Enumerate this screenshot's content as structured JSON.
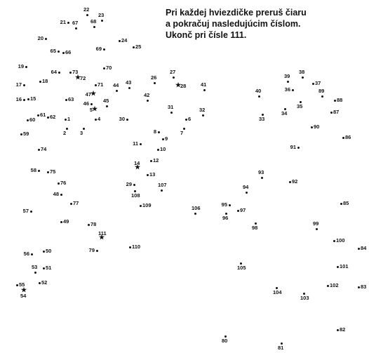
{
  "instructions": {
    "line1": "Pri každej hviezdičke preruš čiaru",
    "line2": "a pokračuj nasledujúcim číslom.",
    "line3": "Ukonč pri čísle 111."
  },
  "dots": [
    {
      "n": "1"
    },
    {
      "n": "2"
    },
    {
      "n": "3"
    },
    {
      "n": "4"
    },
    {
      "n": "5",
      "star": true
    },
    {
      "n": "6"
    },
    {
      "n": "7"
    },
    {
      "n": "8"
    },
    {
      "n": "9"
    },
    {
      "n": "10"
    },
    {
      "n": "11"
    },
    {
      "n": "12"
    },
    {
      "n": "13"
    },
    {
      "n": "14",
      "star": true
    },
    {
      "n": "15"
    },
    {
      "n": "16"
    },
    {
      "n": "17"
    },
    {
      "n": "18"
    },
    {
      "n": "19"
    },
    {
      "n": "20"
    },
    {
      "n": "21"
    },
    {
      "n": "22"
    },
    {
      "n": "23"
    },
    {
      "n": "24"
    },
    {
      "n": "25"
    },
    {
      "n": "26"
    },
    {
      "n": "27"
    },
    {
      "n": "28",
      "star": true
    },
    {
      "n": "29"
    },
    {
      "n": "30"
    },
    {
      "n": "31"
    },
    {
      "n": "32"
    },
    {
      "n": "33"
    },
    {
      "n": "34"
    },
    {
      "n": "35"
    },
    {
      "n": "36"
    },
    {
      "n": "37"
    },
    {
      "n": "38"
    },
    {
      "n": "39"
    },
    {
      "n": "40"
    },
    {
      "n": "41"
    },
    {
      "n": "42"
    },
    {
      "n": "43"
    },
    {
      "n": "44"
    },
    {
      "n": "45"
    },
    {
      "n": "46"
    },
    {
      "n": "47",
      "star": true
    },
    {
      "n": "48"
    },
    {
      "n": "49"
    },
    {
      "n": "50"
    },
    {
      "n": "51"
    },
    {
      "n": "52"
    },
    {
      "n": "53"
    },
    {
      "n": "54",
      "star": true
    },
    {
      "n": "55"
    },
    {
      "n": "56"
    },
    {
      "n": "57"
    },
    {
      "n": "58"
    },
    {
      "n": "59"
    },
    {
      "n": "60"
    },
    {
      "n": "61"
    },
    {
      "n": "62"
    },
    {
      "n": "63"
    },
    {
      "n": "64"
    },
    {
      "n": "65"
    },
    {
      "n": "66"
    },
    {
      "n": "67"
    },
    {
      "n": "68"
    },
    {
      "n": "69"
    },
    {
      "n": "70"
    },
    {
      "n": "71"
    },
    {
      "n": "72",
      "star": true
    },
    {
      "n": "73"
    },
    {
      "n": "74"
    },
    {
      "n": "75"
    },
    {
      "n": "76"
    },
    {
      "n": "77"
    },
    {
      "n": "78"
    },
    {
      "n": "79"
    },
    {
      "n": "80"
    },
    {
      "n": "81"
    },
    {
      "n": "82"
    },
    {
      "n": "83"
    },
    {
      "n": "84"
    },
    {
      "n": "85"
    },
    {
      "n": "86"
    },
    {
      "n": "87"
    },
    {
      "n": "88"
    },
    {
      "n": "89"
    },
    {
      "n": "90"
    },
    {
      "n": "91"
    },
    {
      "n": "92"
    },
    {
      "n": "93"
    },
    {
      "n": "94"
    },
    {
      "n": "95"
    },
    {
      "n": "96"
    },
    {
      "n": "97"
    },
    {
      "n": "98"
    },
    {
      "n": "99"
    },
    {
      "n": "100"
    },
    {
      "n": "101"
    },
    {
      "n": "102"
    },
    {
      "n": "103"
    },
    {
      "n": "104"
    },
    {
      "n": "105"
    },
    {
      "n": "106"
    },
    {
      "n": "107"
    },
    {
      "n": "108"
    },
    {
      "n": "109"
    },
    {
      "n": "110"
    },
    {
      "n": "111",
      "star": true
    }
  ]
}
